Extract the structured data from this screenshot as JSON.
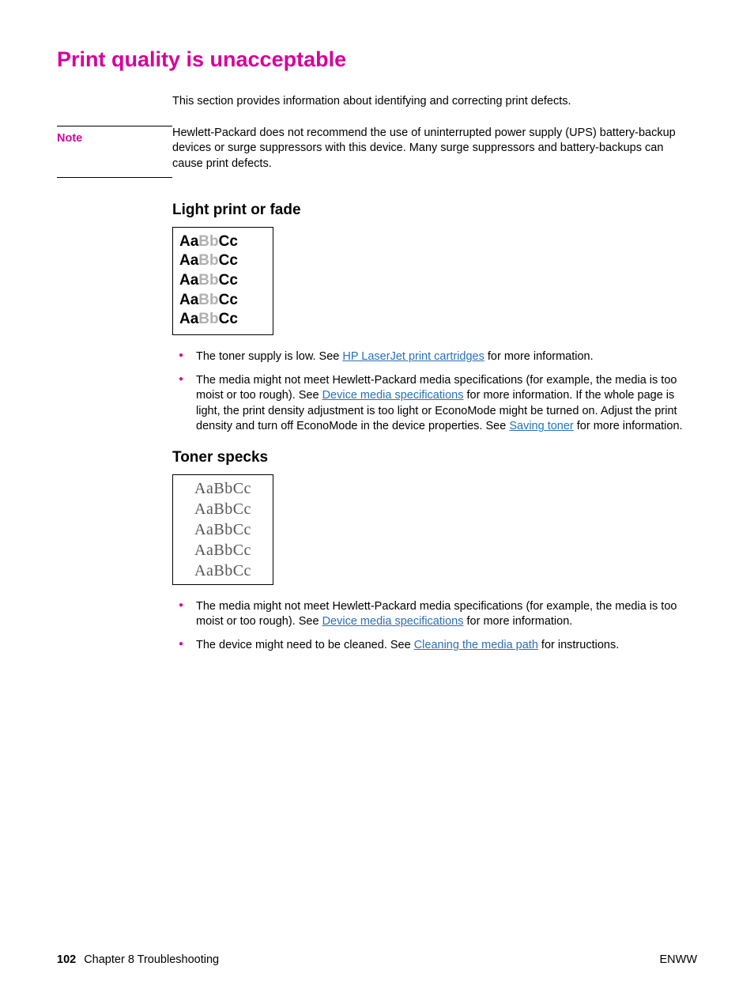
{
  "colors": {
    "accent_magenta": "#d6009a",
    "link_blue": "#2a6fbb",
    "text_black": "#000000",
    "fade_light": "#b0b0b0",
    "speck_gray": "#555555"
  },
  "heading": "Print quality is unacceptable",
  "intro": "This section provides information about identifying and correcting print defects.",
  "note": {
    "label": "Note",
    "body": "Hewlett-Packard does not recommend the use of uninterrupted power supply (UPS) battery-backup devices or surge suppressors with this device. Many surge suppressors and battery-backups can cause print defects."
  },
  "sections": {
    "light_print": {
      "title": "Light print or fade",
      "sample_lines": [
        "AaBbCc",
        "AaBbCc",
        "AaBbCc",
        "AaBbCc",
        "AaBbCc"
      ],
      "bullets": [
        {
          "pre": "The toner supply is low. See ",
          "link1": "HP LaserJet print cartridges",
          "post1": " for more information."
        },
        {
          "pre": "The media might not meet Hewlett-Packard media specifications (for example, the media is too moist or too rough). See ",
          "link1": "Device media specifications",
          "mid": " for more information. If the whole page is light, the print density adjustment is too light or EconoMode might be turned on. Adjust the print density and turn off EconoMode in the device properties. See ",
          "link2": "Saving toner",
          "post2": " for more information."
        }
      ]
    },
    "toner_specks": {
      "title": "Toner specks",
      "sample_lines": [
        "AaBbCc",
        "AaBbCc",
        "AaBbCc",
        "AaBbCc",
        "AaBbCc"
      ],
      "bullets": [
        {
          "pre": "The media might not meet Hewlett-Packard media specifications (for example, the media is too moist or too rough). See ",
          "link1": "Device media specifications",
          "post1": " for more information."
        },
        {
          "pre": "The device might need to be cleaned. See ",
          "link1": "Cleaning the media path",
          "post1": " for instructions."
        }
      ]
    }
  },
  "footer": {
    "page_number": "102",
    "chapter": "Chapter 8  Troubleshooting",
    "right": "ENWW"
  }
}
